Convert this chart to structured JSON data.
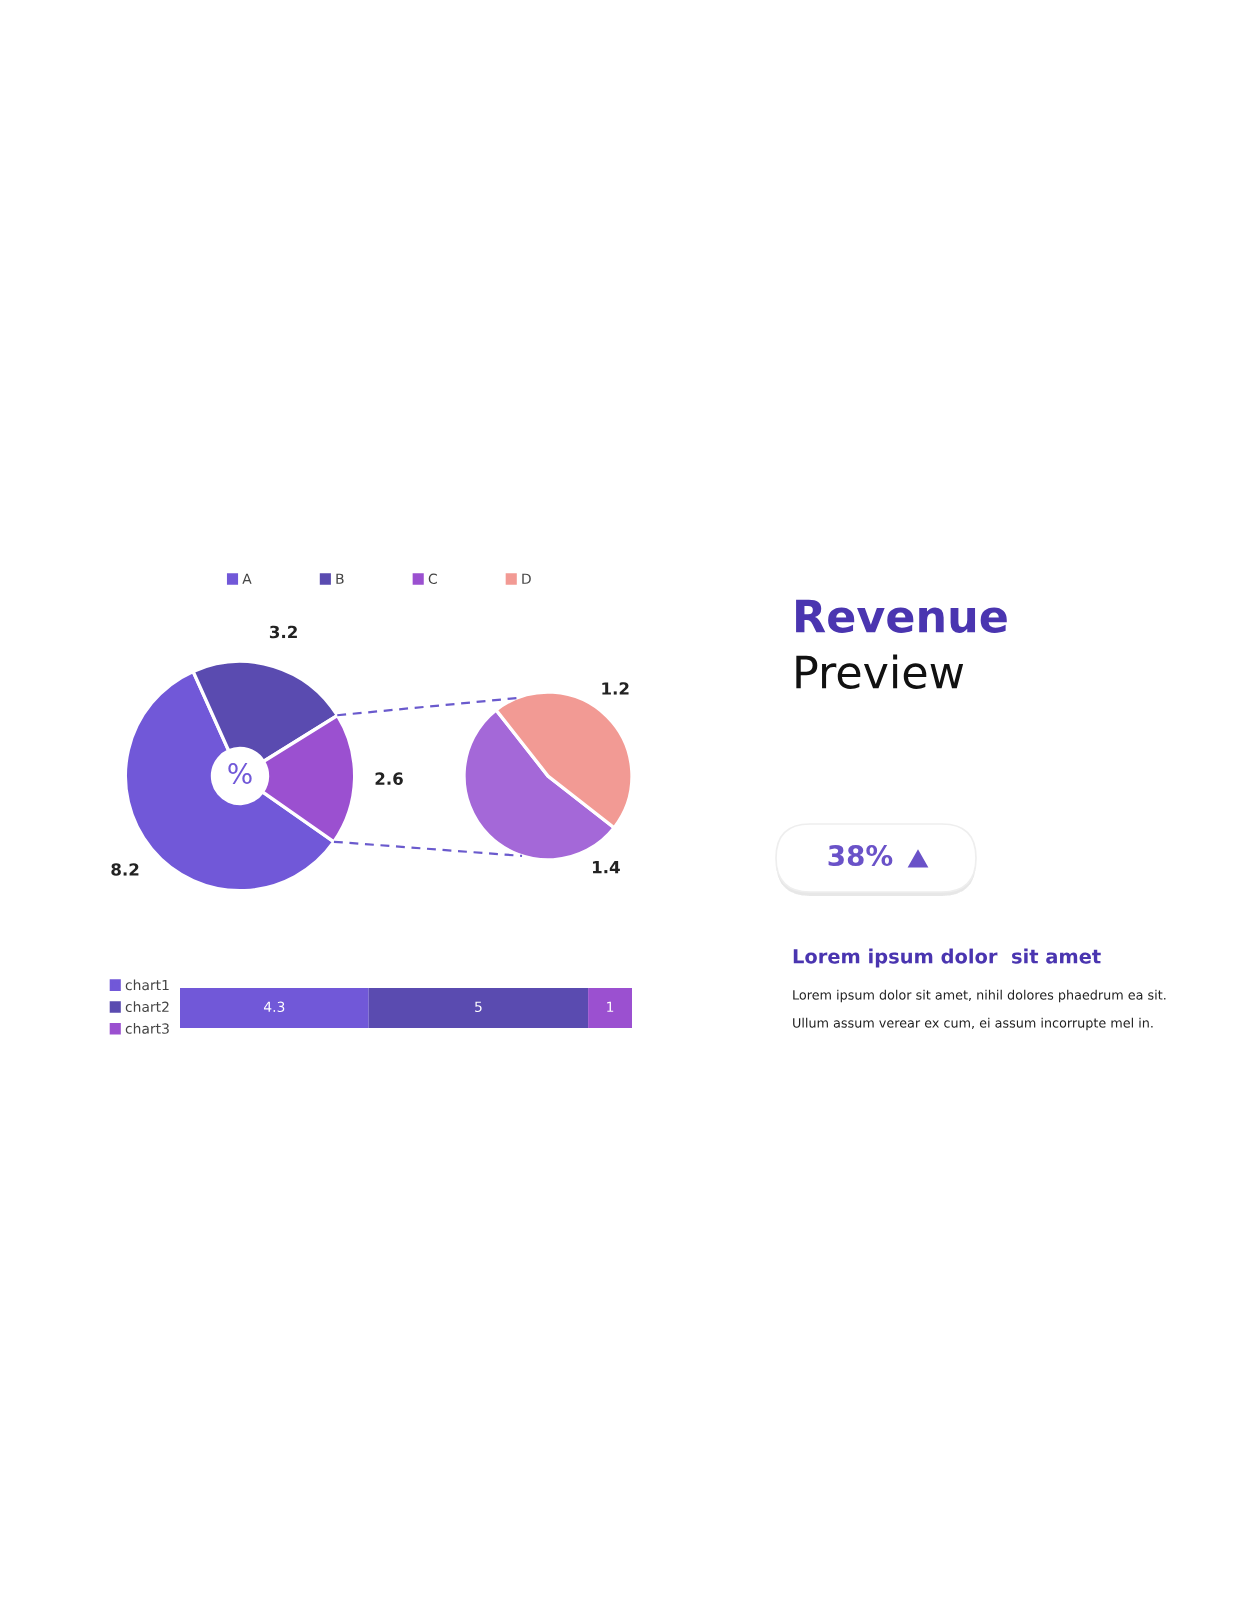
{
  "chart_data": [
    {
      "type": "donut",
      "categories": [
        "A",
        "B",
        "C"
      ],
      "values": [
        8.2,
        3.2,
        2.6
      ],
      "colors": [
        "#7158d8",
        "#5a4bb0",
        "#9b50d0"
      ],
      "data_labels": true,
      "legend": "top",
      "annotations": [
        "%"
      ]
    },
    {
      "type": "pie",
      "categories": [
        null,
        "D"
      ],
      "values": [
        1.4,
        1.2
      ],
      "colors": [
        "#a468d8",
        "#f29a94"
      ],
      "data_labels": true,
      "legend": "top"
    },
    {
      "type": "bar",
      "orientation": "horizontal",
      "stacked": true,
      "categories": [
        null
      ],
      "series": [
        {
          "name": "chart1",
          "color": "#7158d8",
          "values": [
            4.3
          ]
        },
        {
          "name": "chart2",
          "color": "#5a4bb0",
          "values": [
            5
          ]
        },
        {
          "name": "chart3",
          "color": "#9b50d0",
          "values": [
            1
          ]
        }
      ],
      "data_labels": true,
      "legend": "left",
      "tick_labels": false
    },
    {
      "type": "other",
      "title": "Revenue",
      "subtitle": "Preview",
      "annotations": [
        "38%",
        "Lorem ipsum dolor  sit amet",
        "Lorem ipsum dolor sit amet, nihil dolores phaedrum ea sit.",
        "Ullum assum verear ex cum, ei assum incorrupte mel in."
      ]
    }
  ]
}
